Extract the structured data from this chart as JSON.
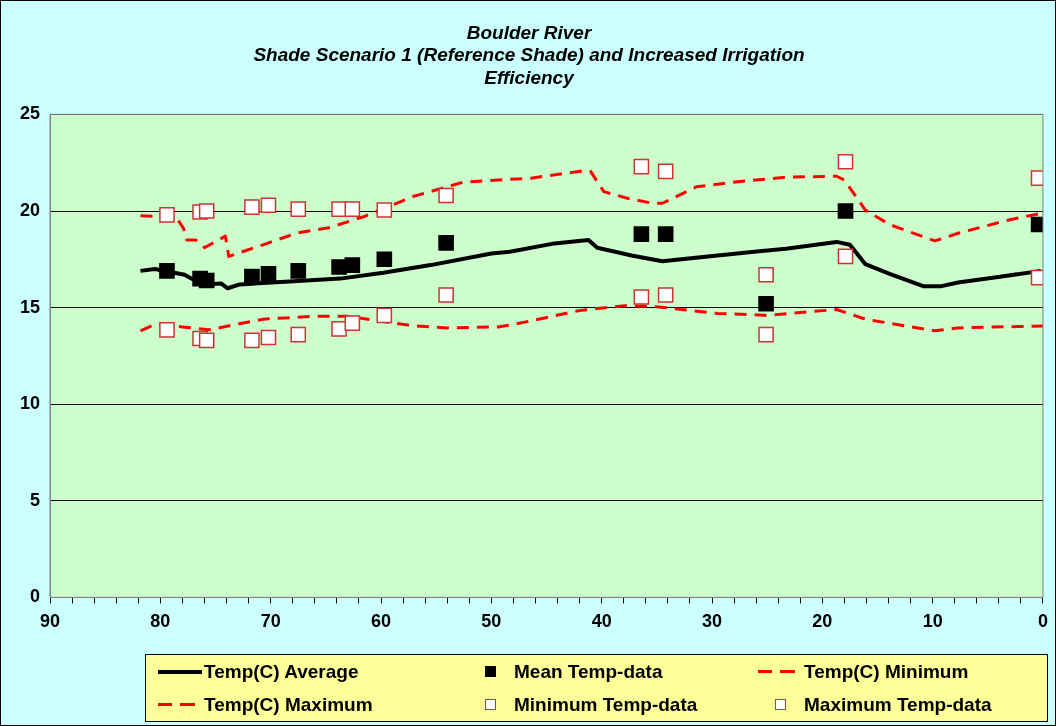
{
  "chart_data": {
    "type": "line",
    "title": "Boulder River\nShade Scenario 1 (Reference Shade) and Increased Irrigation\nEfficiency",
    "xlim": [
      90,
      0
    ],
    "xticks": [
      90,
      {
        "value": 88,
        "label": null
      },
      {
        "value": 86,
        "label": null
      },
      {
        "value": 84,
        "label": null
      },
      {
        "value": 82,
        "label": null
      },
      80,
      {
        "value": 78,
        "label": null
      },
      {
        "value": 76,
        "label": null
      },
      {
        "value": 74,
        "label": null
      },
      {
        "value": 72,
        "label": null
      },
      70,
      {
        "value": 68,
        "label": null
      },
      {
        "value": 66,
        "label": null
      },
      {
        "value": 64,
        "label": null
      },
      {
        "value": 62,
        "label": null
      },
      60,
      {
        "value": 58,
        "label": null
      },
      {
        "value": 56,
        "label": null
      },
      {
        "value": 54,
        "label": null
      },
      {
        "value": 52,
        "label": null
      },
      50,
      {
        "value": 48,
        "label": null
      },
      {
        "value": 46,
        "label": null
      },
      {
        "value": 44,
        "label": null
      },
      {
        "value": 42,
        "label": null
      },
      40,
      {
        "value": 38,
        "label": null
      },
      {
        "value": 36,
        "label": null
      },
      {
        "value": 34,
        "label": null
      },
      {
        "value": 32,
        "label": null
      },
      30,
      {
        "value": 28,
        "label": null
      },
      {
        "value": 26,
        "label": null
      },
      {
        "value": 24,
        "label": null
      },
      {
        "value": 22,
        "label": null
      },
      20,
      {
        "value": 18,
        "label": null
      },
      {
        "value": 16,
        "label": null
      },
      {
        "value": 14,
        "label": null
      },
      {
        "value": 12,
        "label": null
      },
      10,
      {
        "value": 8,
        "label": null
      },
      {
        "value": 6,
        "label": null
      },
      {
        "value": 4,
        "label": null
      },
      {
        "value": 2,
        "label": null
      },
      0
    ],
    "ylim": [
      0,
      25
    ],
    "yticks": [
      0,
      5,
      10,
      15,
      20,
      25
    ],
    "grid": "y",
    "legend": "bottom",
    "series": [
      {
        "name": "Temp(C) Average",
        "color": "#000000",
        "line_style": "solid",
        "marker": "none",
        "x": [
          81.8,
          80.5,
          77.8,
          76.2,
          74.5,
          73.9,
          72.8,
          68.3,
          63.7,
          59.8,
          55.5,
          50.0,
          48.2,
          44.5,
          41.2,
          40.4,
          37.3,
          34.5,
          29.5,
          23.3,
          18.7,
          17.5,
          16.1,
          13.9,
          10.8,
          9.3,
          7.7,
          3.9,
          0.2
        ],
        "values": [
          16.9,
          17.0,
          16.7,
          16.2,
          16.25,
          16.0,
          16.2,
          16.35,
          16.5,
          16.8,
          17.2,
          17.8,
          17.9,
          18.3,
          18.5,
          18.1,
          17.7,
          17.4,
          17.7,
          18.05,
          18.4,
          18.25,
          17.25,
          16.75,
          16.1,
          16.1,
          16.3,
          16.6,
          16.9
        ]
      },
      {
        "name": "Mean Temp-data",
        "type": "scatter",
        "color": "#000000",
        "marker": "square",
        "x": [
          79.4,
          76.4,
          75.8,
          71.7,
          70.2,
          67.5,
          63.8,
          62.6,
          59.7,
          54.1,
          36.4,
          34.2,
          25.1,
          17.9,
          0.4
        ],
        "values": [
          16.9,
          16.5,
          16.4,
          16.6,
          16.75,
          16.9,
          17.1,
          17.2,
          17.5,
          18.35,
          18.8,
          18.8,
          15.2,
          20.0,
          19.3
        ]
      },
      {
        "name": "Temp(C) Minimum",
        "color": "#ff0000",
        "line_style": "dashed",
        "marker": "none",
        "x": [
          81.8,
          80.4,
          78.0,
          75.6,
          72.5,
          70.7,
          66.2,
          63.1,
          60.1,
          57.0,
          54.0,
          49.4,
          48.2,
          42.0,
          37.9,
          35.1,
          29.5,
          25.1,
          18.7,
          16.1,
          9.8,
          7.7,
          0
        ],
        "values": [
          13.8,
          14.15,
          14.0,
          13.85,
          14.2,
          14.4,
          14.55,
          14.55,
          14.3,
          14.05,
          13.95,
          14.0,
          14.1,
          14.85,
          15.1,
          15.05,
          14.7,
          14.6,
          14.9,
          14.4,
          13.8,
          13.95,
          14.05
        ]
      },
      {
        "name": "Temp(C) Maximum",
        "color": "#ff0000",
        "line_style": "dashed",
        "marker": "none",
        "x": [
          81.8,
          78.6,
          77.9,
          77.6,
          76.8,
          76.0,
          74.1,
          73.8,
          70.7,
          67.7,
          64.6,
          61.6,
          57.1,
          52.5,
          46.4,
          41.4,
          41.0,
          39.8,
          37.6,
          35.4,
          34.5,
          31.4,
          27.9,
          23.3,
          18.7,
          18.0,
          16.1,
          13.9,
          9.8,
          7.7,
          3.0,
          0
        ],
        "values": [
          19.75,
          19.7,
          19.1,
          18.5,
          18.5,
          18.1,
          18.7,
          17.65,
          18.25,
          18.85,
          19.15,
          19.7,
          20.75,
          21.5,
          21.7,
          22.1,
          22.05,
          21.0,
          20.65,
          20.4,
          20.4,
          21.25,
          21.5,
          21.75,
          21.8,
          21.6,
          20.05,
          19.3,
          18.45,
          18.85,
          19.55,
          19.9
        ]
      },
      {
        "name": "Minimum Temp-data",
        "type": "scatter",
        "color": "#cc3333",
        "marker": "square",
        "x": [
          79.4,
          76.4,
          75.8,
          71.7,
          70.2,
          67.5,
          63.8,
          62.6,
          59.7,
          54.1,
          36.4,
          34.2,
          25.1,
          17.9,
          0.4
        ],
        "values": [
          13.85,
          13.4,
          13.3,
          13.3,
          13.45,
          13.6,
          13.9,
          14.2,
          14.6,
          15.65,
          15.55,
          15.65,
          13.6,
          17.65,
          16.55
        ]
      },
      {
        "name": "Maximum Temp-data",
        "type": "scatter",
        "color": "#cc3333",
        "marker": "square",
        "x": [
          79.4,
          76.4,
          75.8,
          71.7,
          70.2,
          67.5,
          63.8,
          62.6,
          59.7,
          54.1,
          36.4,
          34.2,
          25.1,
          17.9,
          0.4
        ],
        "values": [
          19.8,
          19.95,
          20.0,
          20.2,
          20.3,
          20.1,
          20.1,
          20.1,
          20.05,
          20.8,
          22.3,
          22.05,
          16.7,
          22.55,
          21.7
        ]
      }
    ]
  }
}
